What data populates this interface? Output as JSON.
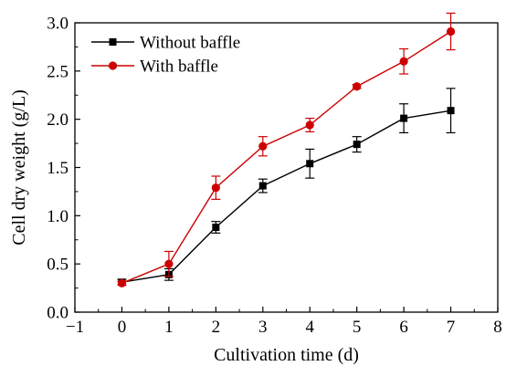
{
  "chart_data": {
    "type": "line",
    "xlabel": "Cultivation time (d)",
    "ylabel": "Cell dry weight (g/L)",
    "xlim": [
      -1,
      8
    ],
    "ylim": [
      0,
      3.0
    ],
    "x_ticks": [
      "−1",
      "0",
      "1",
      "2",
      "3",
      "4",
      "5",
      "6",
      "7",
      "8"
    ],
    "y_ticks": [
      "0.0",
      "0.5",
      "1.0",
      "1.5",
      "2.0",
      "2.5",
      "3.0"
    ],
    "x_tick_values": [
      -1,
      0,
      1,
      2,
      3,
      4,
      5,
      6,
      7,
      8
    ],
    "y_tick_values": [
      0,
      0.5,
      1.0,
      1.5,
      2.0,
      2.5,
      3.0
    ],
    "grid": false,
    "legend_position": "top-left",
    "series": [
      {
        "name": "Without baffle",
        "color": "#000000",
        "marker": "square",
        "x": [
          0,
          1,
          2,
          3,
          4,
          5,
          6,
          7
        ],
        "y": [
          0.31,
          0.39,
          0.88,
          1.31,
          1.54,
          1.74,
          2.01,
          2.09
        ],
        "error": [
          0.03,
          0.06,
          0.06,
          0.07,
          0.15,
          0.08,
          0.15,
          0.23
        ]
      },
      {
        "name": "With baffle",
        "color": "#cc0000",
        "marker": "circle",
        "x": [
          0,
          1,
          2,
          3,
          4,
          5,
          6,
          7
        ],
        "y": [
          0.3,
          0.5,
          1.29,
          1.72,
          1.94,
          2.34,
          2.6,
          2.91
        ],
        "error": [
          0.02,
          0.13,
          0.12,
          0.1,
          0.07,
          0.02,
          0.13,
          0.19
        ]
      }
    ]
  }
}
